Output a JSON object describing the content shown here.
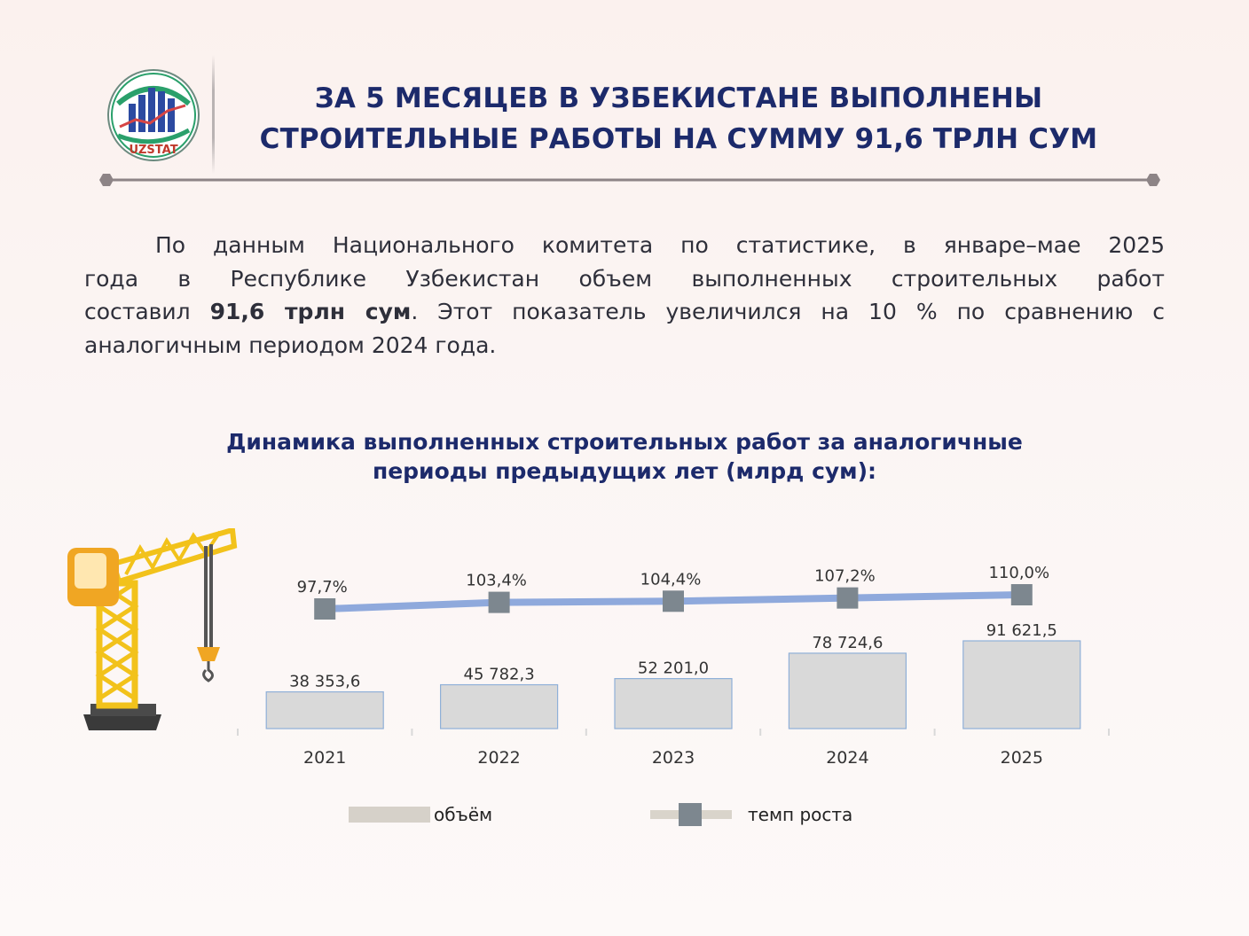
{
  "logo": {
    "text": "UZSTAT"
  },
  "headline": {
    "line1": "ЗА 5 МЕСЯЦЕВ В УЗБЕКИСТАНЕ ВЫПОЛНЕНЫ",
    "line2": "СТРОИТЕЛЬНЫЕ РАБОТЫ НА СУММУ 91,6 ТРЛН СУМ"
  },
  "intro": {
    "l1": "По данным Национального комитета по статистике, в январе–мае 2025",
    "l2": "года в Республике Узбекистан объем выполненных строительных работ",
    "l3a": "составил ",
    "l3b": "91,6 трлн сум",
    "l3c": ". Этот показатель увеличился на 10 % по сравнению с",
    "l4": "аналогичным периодом 2024 года."
  },
  "chart_data": {
    "type": "bar",
    "title_line1": "Динамика выполненных строительных работ за аналогичные",
    "title_line2": "периоды предыдущих лет (млрд сум):",
    "categories": [
      "2021",
      "2022",
      "2023",
      "2024",
      "2025"
    ],
    "series": [
      {
        "name": "объём",
        "type": "bar",
        "values": [
          38353.6,
          45782.3,
          52201.0,
          78724.6,
          91621.5
        ],
        "labels": [
          "38 353,6",
          "45 782,3",
          "52 201,0",
          "78 724,6",
          "91 621,5"
        ],
        "color": "#d9d9d9",
        "border": "#8fb0d8"
      },
      {
        "name": "темп роста",
        "type": "line",
        "values": [
          97.7,
          103.4,
          104.4,
          107.2,
          110.0
        ],
        "labels": [
          "97,7%",
          "103,4%",
          "104,4%",
          "107,2%",
          "110,0%"
        ],
        "color": "#8fa9dc",
        "marker_color": "#7d878f"
      }
    ],
    "legend": [
      "объём",
      "темп роста"
    ],
    "legend_position": "bottom"
  }
}
